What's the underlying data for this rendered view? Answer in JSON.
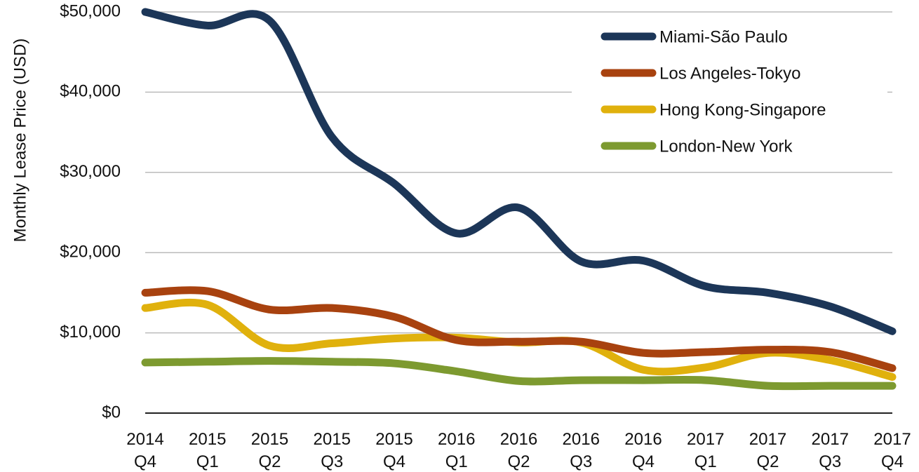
{
  "chart_data": {
    "type": "line",
    "y_label": "Monthly Lease Price (USD)",
    "categories": [
      "2014 Q4",
      "2015 Q1",
      "2015 Q2",
      "2015 Q3",
      "2015 Q4",
      "2016 Q1",
      "2016 Q2",
      "2016 Q3",
      "2016 Q4",
      "2017 Q1",
      "2017 Q2",
      "2017 Q3",
      "2017 Q4"
    ],
    "series": [
      {
        "name": "Miami-São Paulo",
        "color": "#1c3658",
        "values": [
          50000,
          48300,
          48900,
          34400,
          28600,
          22400,
          25600,
          18900,
          19000,
          15800,
          15000,
          13300,
          10200
        ]
      },
      {
        "name": "Los Angeles-Tokyo",
        "color": "#a8420f",
        "values": [
          15000,
          15200,
          12900,
          13100,
          12000,
          9100,
          8900,
          8900,
          7500,
          7600,
          7900,
          7600,
          5600
        ]
      },
      {
        "name": "Hong Kong-Singapore",
        "color": "#e0b10d",
        "values": [
          13100,
          13500,
          8400,
          8700,
          9300,
          9400,
          8800,
          8800,
          5400,
          5700,
          7500,
          6600,
          4500
        ]
      },
      {
        "name": "London-New York",
        "color": "#7d9a30",
        "values": [
          6300,
          6400,
          6500,
          6400,
          6200,
          5200,
          4000,
          4100,
          4100,
          4100,
          3400,
          3400,
          3400
        ]
      }
    ],
    "ylim": [
      0,
      50000
    ],
    "yticks": [
      {
        "value": 0,
        "label": "$0"
      },
      {
        "value": 10000,
        "label": "$10,000"
      },
      {
        "value": 20000,
        "label": "$20,000"
      },
      {
        "value": 30000,
        "label": "$30,000"
      },
      {
        "value": 40000,
        "label": "$40,000"
      },
      {
        "value": 50000,
        "label": "$50,000"
      }
    ],
    "grid": true,
    "legend": "top-right"
  }
}
